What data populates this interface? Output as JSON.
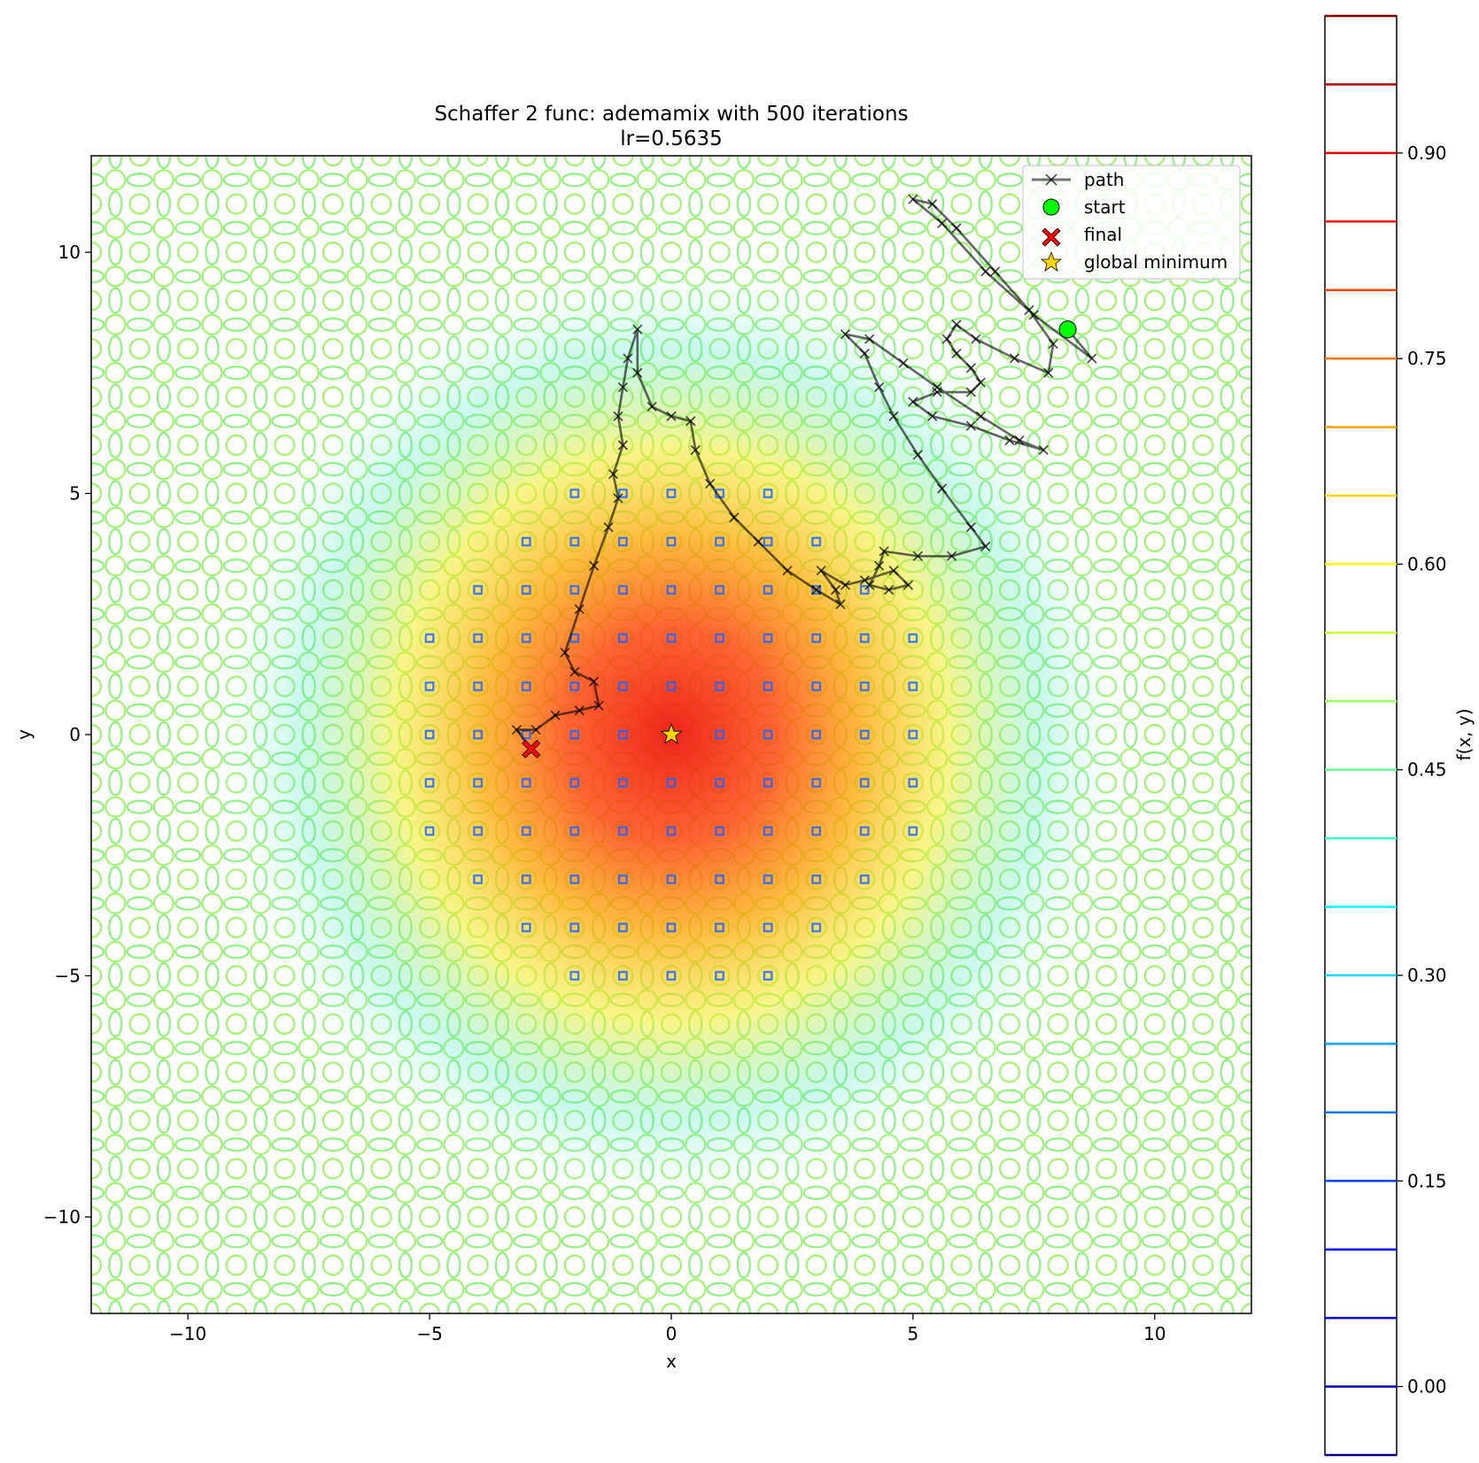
{
  "chart_data": {
    "type": "contour",
    "title": "Schaffer 2 func: ademamix with 500 iterations",
    "subtitle": "lr=0.5635",
    "xlabel": "x",
    "ylabel": "y",
    "xlim": [
      -12,
      12
    ],
    "ylim": [
      -12,
      12
    ],
    "xticks": [
      -10,
      -5,
      0,
      5,
      10
    ],
    "xtick_labels": [
      "−10",
      "−5",
      "0",
      "5",
      "10"
    ],
    "yticks": [
      -10,
      -5,
      0,
      5,
      10
    ],
    "ytick_labels": [
      "−10",
      "−5",
      "0",
      "5",
      "10"
    ],
    "grid": false,
    "legend_position": "top-right",
    "legend": [
      {
        "key": "path",
        "label": "path"
      },
      {
        "key": "start",
        "label": "start"
      },
      {
        "key": "final",
        "label": "final"
      },
      {
        "key": "global_minimum",
        "label": "global minimum"
      }
    ],
    "colormap": "jet",
    "contour_levels": [
      -0.05,
      0.0,
      0.05,
      0.1,
      0.15,
      0.2,
      0.25,
      0.3,
      0.35,
      0.4,
      0.45,
      0.5,
      0.55,
      0.6,
      0.65,
      0.7,
      0.75,
      0.8,
      0.85,
      0.9,
      0.95,
      1.0
    ],
    "colorbar": {
      "label": "f(x, y)",
      "range": [
        -0.05,
        1.0
      ],
      "ticks": [
        0.0,
        0.15,
        0.3,
        0.45,
        0.6,
        0.75,
        0.9
      ],
      "tick_labels": [
        "0.00",
        "0.15",
        "0.30",
        "0.45",
        "0.60",
        "0.75",
        "0.90"
      ]
    },
    "path": {
      "color": "#000000",
      "marker": "x",
      "points": [
        [
          8.2,
          8.4
        ],
        [
          8.7,
          7.8
        ],
        [
          7.5,
          8.7
        ],
        [
          6.5,
          9.6
        ],
        [
          5.6,
          10.6
        ],
        [
          5.0,
          11.1
        ],
        [
          5.4,
          11.0
        ],
        [
          5.9,
          10.5
        ],
        [
          6.7,
          9.6
        ],
        [
          7.4,
          8.8
        ],
        [
          7.9,
          8.1
        ],
        [
          7.8,
          7.5
        ],
        [
          7.1,
          7.8
        ],
        [
          6.3,
          8.2
        ],
        [
          5.9,
          8.5
        ],
        [
          5.7,
          8.2
        ],
        [
          5.9,
          7.9
        ],
        [
          6.2,
          7.6
        ],
        [
          6.4,
          7.3
        ],
        [
          6.2,
          7.1
        ],
        [
          5.5,
          7.1
        ],
        [
          5.0,
          6.9
        ],
        [
          5.4,
          6.6
        ],
        [
          6.2,
          6.4
        ],
        [
          7.0,
          6.1
        ],
        [
          7.7,
          5.9
        ],
        [
          7.2,
          6.1
        ],
        [
          6.4,
          6.6
        ],
        [
          5.5,
          7.2
        ],
        [
          4.8,
          7.7
        ],
        [
          4.1,
          8.2
        ],
        [
          3.6,
          8.3
        ],
        [
          4.0,
          7.9
        ],
        [
          4.3,
          7.2
        ],
        [
          4.6,
          6.6
        ],
        [
          5.1,
          5.8
        ],
        [
          5.6,
          5.1
        ],
        [
          6.2,
          4.3
        ],
        [
          6.5,
          3.9
        ],
        [
          5.8,
          3.7
        ],
        [
          5.1,
          3.7
        ],
        [
          4.4,
          3.8
        ],
        [
          4.3,
          3.5
        ],
        [
          4.1,
          3.1
        ],
        [
          4.5,
          3.0
        ],
        [
          4.9,
          3.1
        ],
        [
          4.6,
          3.4
        ],
        [
          4.0,
          3.2
        ],
        [
          3.6,
          3.1
        ],
        [
          3.1,
          3.4
        ],
        [
          3.4,
          3.0
        ],
        [
          3.5,
          2.7
        ],
        [
          3.0,
          3.0
        ],
        [
          2.4,
          3.4
        ],
        [
          1.8,
          4.0
        ],
        [
          1.3,
          4.5
        ],
        [
          0.8,
          5.2
        ],
        [
          0.5,
          5.9
        ],
        [
          0.4,
          6.5
        ],
        [
          0.0,
          6.6
        ],
        [
          -0.4,
          6.8
        ],
        [
          -0.7,
          7.5
        ],
        [
          -0.7,
          8.4
        ],
        [
          -0.9,
          7.8
        ],
        [
          -1.0,
          7.2
        ],
        [
          -1.1,
          6.6
        ],
        [
          -1.0,
          6.0
        ],
        [
          -1.2,
          5.4
        ],
        [
          -1.1,
          4.9
        ],
        [
          -1.3,
          4.3
        ],
        [
          -1.6,
          3.5
        ],
        [
          -1.9,
          2.6
        ],
        [
          -2.2,
          1.7
        ],
        [
          -2.0,
          1.3
        ],
        [
          -1.6,
          1.1
        ],
        [
          -1.5,
          0.6
        ],
        [
          -1.9,
          0.5
        ],
        [
          -2.4,
          0.4
        ],
        [
          -2.8,
          0.1
        ],
        [
          -3.2,
          0.1
        ],
        [
          -2.9,
          -0.3
        ]
      ]
    },
    "start": {
      "x": 8.2,
      "y": 8.4,
      "color": "#00ff00"
    },
    "final": {
      "x": -2.9,
      "y": -0.3,
      "color": "#ff0000"
    },
    "global_minimum": {
      "x": 0.0,
      "y": 0.0,
      "color": "#ffd700"
    }
  }
}
